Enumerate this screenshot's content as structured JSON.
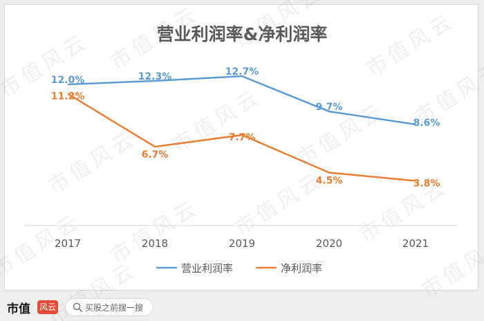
{
  "chart_data": {
    "type": "line",
    "title": "营业利润率&净利润率",
    "categories": [
      "2017",
      "2018",
      "2019",
      "2020",
      "2021"
    ],
    "series": [
      {
        "name": "营业利润率",
        "values": [
          12.0,
          12.3,
          12.7,
          9.7,
          8.6
        ],
        "labels": [
          "12.0%",
          "12.3%",
          "12.7%",
          "9.7%",
          "8.6%"
        ],
        "color": "#5b9bd5"
      },
      {
        "name": "净利润率",
        "values": [
          11.2,
          6.7,
          7.7,
          4.5,
          3.8
        ],
        "labels": [
          "11.2%",
          "6.7%",
          "7.7%",
          "4.5%",
          "3.8%"
        ],
        "color": "#ed7d31"
      }
    ],
    "ylim": [
      0,
      14
    ],
    "grid": false,
    "legend": "bottom"
  },
  "watermark": "市值风云",
  "footer": {
    "brand": "市值",
    "badge": "风云",
    "search_placeholder": "买股之前搜一搜"
  }
}
